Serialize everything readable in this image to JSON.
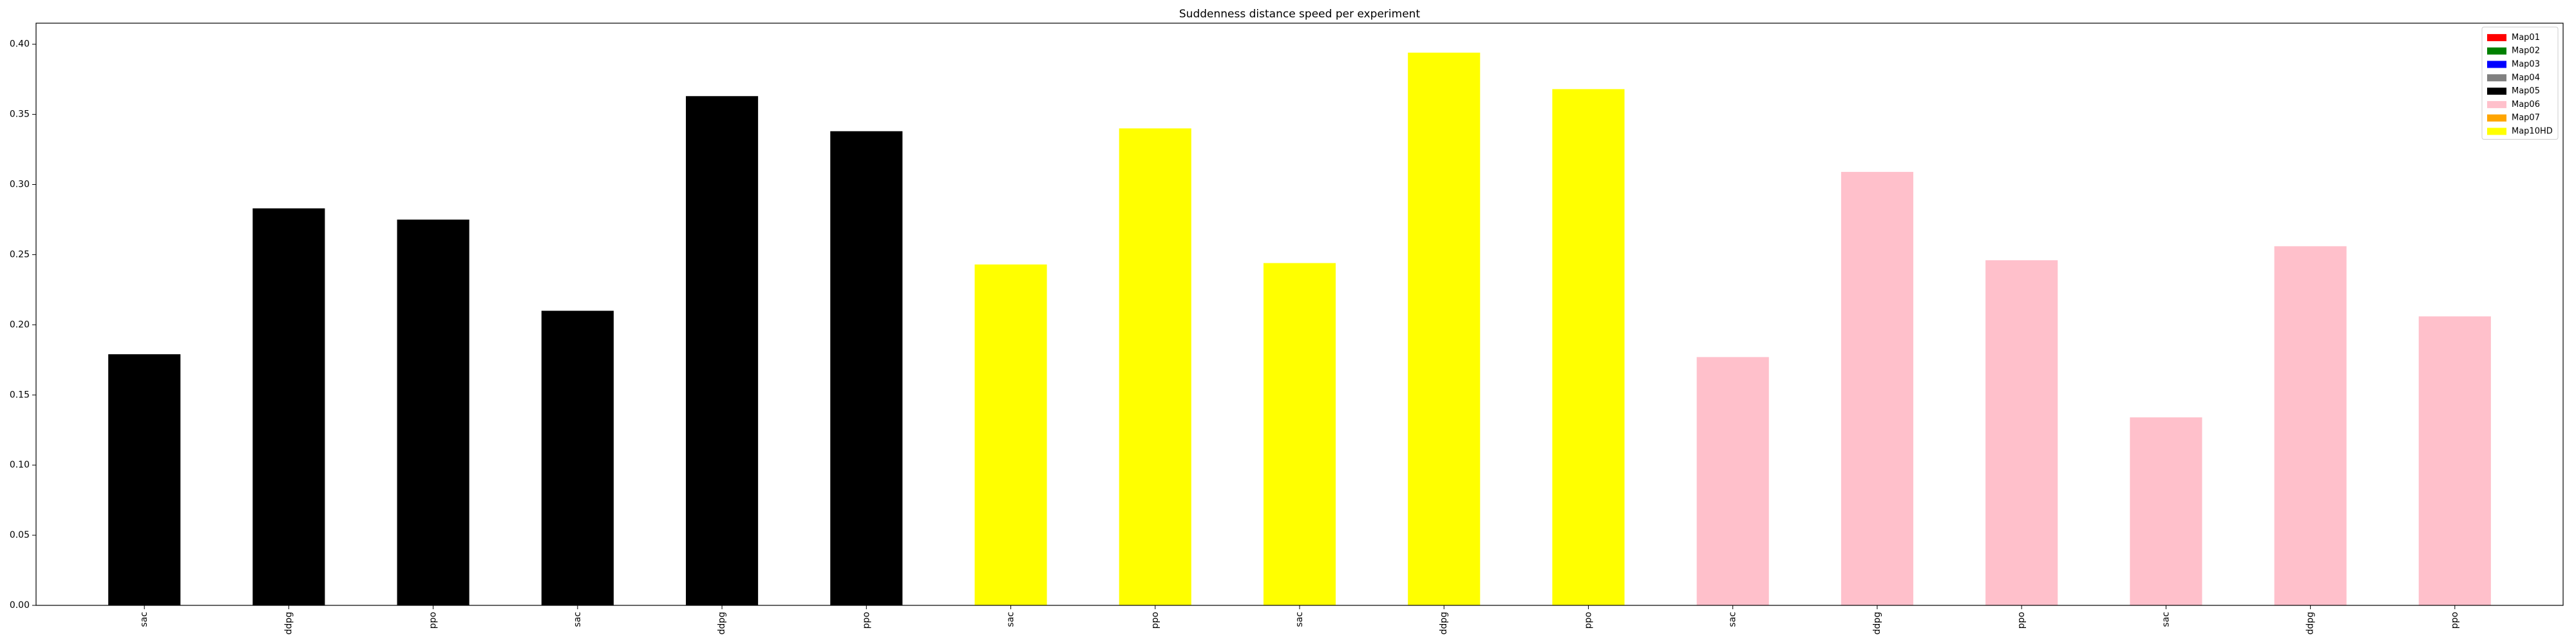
{
  "chart_data": {
    "type": "bar",
    "title": "Suddenness distance speed per experiment",
    "xlabel": "",
    "ylabel": "",
    "ylim": [
      0,
      0.415
    ],
    "yticks": [
      0.0,
      0.05,
      0.1,
      0.15,
      0.2,
      0.25,
      0.3,
      0.35,
      0.4
    ],
    "grid": false,
    "legend_position": "top-right",
    "legend": [
      {
        "name": "Map01",
        "color": "#ff0000"
      },
      {
        "name": "Map02",
        "color": "#008000"
      },
      {
        "name": "Map03",
        "color": "#0000ff"
      },
      {
        "name": "Map04",
        "color": "#808080"
      },
      {
        "name": "Map05",
        "color": "#000000"
      },
      {
        "name": "Map06",
        "color": "#ffc0cb"
      },
      {
        "name": "Map07",
        "color": "#ffa500"
      },
      {
        "name": "Map10HD",
        "color": "#ffff00"
      }
    ],
    "bars": [
      {
        "label": "sac",
        "value": 0.179,
        "color": "#000000"
      },
      {
        "label": "ddpg",
        "value": 0.283,
        "color": "#000000"
      },
      {
        "label": "ppo",
        "value": 0.275,
        "color": "#000000"
      },
      {
        "label": "sac",
        "value": 0.21,
        "color": "#000000"
      },
      {
        "label": "ddpg",
        "value": 0.363,
        "color": "#000000"
      },
      {
        "label": "ppo",
        "value": 0.338,
        "color": "#000000"
      },
      {
        "label": "sac",
        "value": 0.243,
        "color": "#ffff00"
      },
      {
        "label": "ppo",
        "value": 0.34,
        "color": "#ffff00"
      },
      {
        "label": "sac",
        "value": 0.244,
        "color": "#ffff00"
      },
      {
        "label": "ddpg",
        "value": 0.394,
        "color": "#ffff00"
      },
      {
        "label": "ppo",
        "value": 0.368,
        "color": "#ffff00"
      },
      {
        "label": "sac",
        "value": 0.177,
        "color": "#ffc0cb"
      },
      {
        "label": "ddpg",
        "value": 0.309,
        "color": "#ffc0cb"
      },
      {
        "label": "ppo",
        "value": 0.246,
        "color": "#ffc0cb"
      },
      {
        "label": "sac",
        "value": 0.134,
        "color": "#ffc0cb"
      },
      {
        "label": "ddpg",
        "value": 0.256,
        "color": "#ffc0cb"
      },
      {
        "label": "ppo",
        "value": 0.206,
        "color": "#ffc0cb"
      }
    ]
  }
}
